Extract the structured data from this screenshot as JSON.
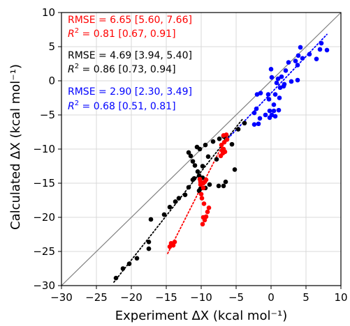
{
  "chart_data": {
    "type": "scatter",
    "xlabel": "Experiment ΔX (kcal mol⁻¹)",
    "ylabel": "Calculated ΔX (kcal mol⁻¹)",
    "xlim": [
      -30,
      10
    ],
    "ylim": [
      -30,
      10
    ],
    "xticks": [
      "−30",
      "−25",
      "−20",
      "−15",
      "−10",
      "−5",
      "0",
      "5",
      "10"
    ],
    "yticks": [
      "10",
      "5",
      "0",
      "−5",
      "−10",
      "−15",
      "−20",
      "−25",
      "−30"
    ],
    "grid": true,
    "identity_line": true,
    "annotations": [
      {
        "rmse": "RMSE = 6.65 [5.60, 7.66]",
        "r2_value": " = 0.81 [0.67, 0.91]",
        "color": "#ff0000"
      },
      {
        "rmse": "RMSE = 4.69 [3.94, 5.40]",
        "r2_value": " = 0.86 [0.73, 0.94]",
        "color": "#000000"
      },
      {
        "rmse": "RMSE = 2.90 [2.30, 3.49]",
        "r2_value": " = 0.68 [0.51, 0.81]",
        "color": "#0000ff"
      }
    ],
    "series": [
      {
        "color": "#000000",
        "fit": [
          [
            -22.5,
            -29.5
          ],
          [
            -4.0,
            -5.5
          ]
        ],
        "points": [
          [
            -22.2,
            -28.9
          ],
          [
            -21.2,
            -27.5
          ],
          [
            -20.3,
            -26.8
          ],
          [
            -19.2,
            -26.0
          ],
          [
            -17.5,
            -24.6
          ],
          [
            -17.5,
            -23.6
          ],
          [
            -17.2,
            -20.3
          ],
          [
            -15.3,
            -19.6
          ],
          [
            -14.5,
            -18.5
          ],
          [
            -13.7,
            -17.7
          ],
          [
            -13.2,
            -17.2
          ],
          [
            -12.3,
            -16.7
          ],
          [
            -11.8,
            -15.6
          ],
          [
            -11.2,
            -14.5
          ],
          [
            -10.5,
            -13.3
          ],
          [
            -10.9,
            -12.4
          ],
          [
            -11.2,
            -11.8
          ],
          [
            -11.8,
            -10.5
          ],
          [
            -10.2,
            -10.0
          ],
          [
            -9.4,
            -9.4
          ],
          [
            -8.3,
            -8.9
          ],
          [
            -7.4,
            -8.5
          ],
          [
            -6.5,
            -8.0
          ],
          [
            -10.6,
            -9.7
          ],
          [
            -9.0,
            -11.1
          ],
          [
            -7.8,
            -11.5
          ],
          [
            -9.8,
            -12.5
          ],
          [
            -10.3,
            -13.9
          ],
          [
            -9.8,
            -14.2
          ],
          [
            -8.8,
            -15.2
          ],
          [
            -7.5,
            -15.4
          ],
          [
            -6.8,
            -15.4
          ],
          [
            -6.5,
            -14.8
          ],
          [
            -5.2,
            -13.0
          ],
          [
            -5.6,
            -9.3
          ],
          [
            -4.7,
            -7.1
          ],
          [
            -3.8,
            -6.2
          ],
          [
            -6.8,
            -8.1
          ],
          [
            -6.4,
            -8.6
          ],
          [
            -10.3,
            -16.1
          ],
          [
            -10.1,
            -15.8
          ],
          [
            -9.4,
            -15.7
          ],
          [
            -11.0,
            -14.3
          ],
          [
            -6.7,
            -8.2
          ],
          [
            -11.5,
            -11.0
          ]
        ]
      },
      {
        "color": "#ff0000",
        "fit": [
          [
            -14.8,
            -25.3
          ],
          [
            -6.5,
            -8.5
          ]
        ],
        "points": [
          [
            -14.5,
            -24.3
          ],
          [
            -14.2,
            -23.9
          ],
          [
            -14.0,
            -24.1
          ],
          [
            -13.8,
            -23.6
          ],
          [
            -14.3,
            -23.8
          ],
          [
            -9.8,
            -21.0
          ],
          [
            -9.5,
            -20.4
          ],
          [
            -9.7,
            -20.0
          ],
          [
            -9.3,
            -19.9
          ],
          [
            -9.1,
            -19.2
          ],
          [
            -8.9,
            -18.6
          ],
          [
            -9.6,
            -18.0
          ],
          [
            -9.9,
            -17.2
          ],
          [
            -10.0,
            -16.6
          ],
          [
            -9.7,
            -15.7
          ],
          [
            -9.7,
            -15.0
          ],
          [
            -10.1,
            -15.2
          ],
          [
            -10.1,
            -14.8
          ],
          [
            -9.5,
            -14.8
          ],
          [
            -9.3,
            -14.5
          ],
          [
            -10.2,
            -14.4
          ],
          [
            -7.2,
            -11.0
          ],
          [
            -6.9,
            -10.6
          ],
          [
            -7.0,
            -10.2
          ],
          [
            -6.6,
            -10.4
          ],
          [
            -6.8,
            -10.0
          ],
          [
            -7.1,
            -9.4
          ],
          [
            -6.7,
            -9.0
          ],
          [
            -6.3,
            -8.6
          ],
          [
            -6.8,
            -8.0
          ],
          [
            -6.4,
            -7.9
          ]
        ]
      },
      {
        "color": "#0000ff",
        "fit": [
          [
            -6.5,
            -8.8
          ],
          [
            8.0,
            6.8
          ]
        ],
        "points": [
          [
            -2.4,
            -4.7
          ],
          [
            -2.4,
            -6.4
          ],
          [
            -1.8,
            -6.3
          ],
          [
            -1.6,
            -5.5
          ],
          [
            -2.1,
            -4.1
          ],
          [
            -0.2,
            -4.4
          ],
          [
            0.4,
            -4.4
          ],
          [
            1.1,
            -4.3
          ],
          [
            -0.8,
            -5.0
          ],
          [
            0.1,
            -5.0
          ],
          [
            0.6,
            -5.2
          ],
          [
            -0.2,
            -5.4
          ],
          [
            0.4,
            -3.5
          ],
          [
            1.2,
            -2.5
          ],
          [
            -0.3,
            -2.7
          ],
          [
            -0.4,
            -2.0
          ],
          [
            0.6,
            -2.0
          ],
          [
            1.3,
            -1.0
          ],
          [
            -1.5,
            -1.8
          ],
          [
            -2.0,
            -2.0
          ],
          [
            1.9,
            -0.5
          ],
          [
            2.9,
            -0.1
          ],
          [
            3.8,
            0.1
          ],
          [
            3.8,
            2.3
          ],
          [
            2.5,
            2.7
          ],
          [
            1.0,
            0.3
          ],
          [
            1.5,
            0.6
          ],
          [
            2.1,
            1.5
          ],
          [
            0.0,
            1.7
          ],
          [
            0.1,
            0.5
          ],
          [
            0.8,
            -0.3
          ],
          [
            1.8,
            -0.8
          ],
          [
            3.5,
            2.9
          ],
          [
            4.2,
            4.9
          ],
          [
            3.9,
            3.7
          ],
          [
            4.5,
            3.3
          ],
          [
            5.5,
            3.9
          ],
          [
            7.0,
            4.6
          ],
          [
            6.5,
            3.2
          ],
          [
            8.0,
            4.5
          ],
          [
            7.2,
            5.5
          ]
        ]
      }
    ]
  }
}
